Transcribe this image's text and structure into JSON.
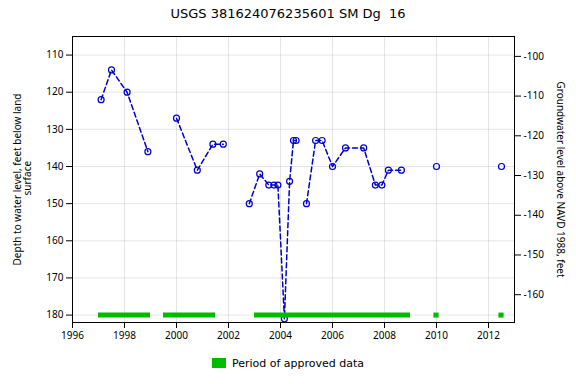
{
  "chart_data": {
    "type": "line",
    "title": "USGS 381624076235601 SM Dg  16",
    "ylabel": "Depth to water level, feet below land\n surface",
    "y2label": "Groundwater level above NAVD 1988, feet",
    "xlim": [
      1996,
      2013
    ],
    "xticks": [
      1996,
      1998,
      2000,
      2002,
      2004,
      2006,
      2008,
      2010,
      2012
    ],
    "ylim": [
      182,
      105
    ],
    "yticks": [
      110,
      120,
      130,
      140,
      150,
      160,
      170,
      180
    ],
    "y2lim": [
      -167,
      -95
    ],
    "y2ticks": [
      -100,
      -110,
      -120,
      -130,
      -140,
      -150,
      -160
    ],
    "grid": true,
    "legend": "bottom",
    "series": [
      {
        "x": [
          1997.1,
          1997.5,
          1998.1,
          1998.9
        ],
        "values": [
          122,
          114,
          120,
          136
        ],
        "color": "#0000cc",
        "line_style": "dashed",
        "marker": "circle"
      },
      {
        "x": [
          2000.0,
          2000.8,
          2001.4,
          2001.8
        ],
        "values": [
          127,
          141,
          134,
          134
        ],
        "color": "#0000cc",
        "line_style": "dashed",
        "marker": "circle"
      },
      {
        "x": [
          2002.8,
          2003.2,
          2003.55,
          2003.75,
          2003.9,
          2004.15,
          2004.35,
          2004.5,
          2004.6
        ],
        "values": [
          150,
          142,
          145,
          145,
          145,
          181,
          144,
          133,
          133
        ],
        "color": "#0000cc",
        "line_style": "dashed",
        "marker": "circle"
      },
      {
        "x": [
          2005.0,
          2005.35,
          2005.6,
          2006.0,
          2006.5,
          2007.2,
          2007.65,
          2007.9,
          2008.15,
          2008.65
        ],
        "values": [
          150,
          133,
          133,
          140,
          135,
          135,
          145,
          145,
          141,
          141
        ],
        "color": "#0000cc",
        "line_style": "dashed",
        "marker": "circle"
      },
      {
        "x": [
          2010.0
        ],
        "values": [
          140
        ],
        "color": "#0000cc",
        "line_style": "dashed",
        "marker": "circle"
      },
      {
        "x": [
          2012.5
        ],
        "values": [
          140
        ],
        "color": "#0000cc",
        "line_style": "dashed",
        "marker": "circle"
      },
      {
        "name": "Period of approved data",
        "type": "bar",
        "orientation": "horizontal",
        "color": "#00bb00",
        "y": 180,
        "ranges": [
          [
            1997.0,
            1999.0
          ],
          [
            1999.5,
            2001.5
          ],
          [
            2003.0,
            2005.5
          ],
          [
            2005.5,
            2009.0
          ],
          [
            2009.9,
            2010.1
          ],
          [
            2012.4,
            2012.6
          ]
        ]
      }
    ]
  }
}
